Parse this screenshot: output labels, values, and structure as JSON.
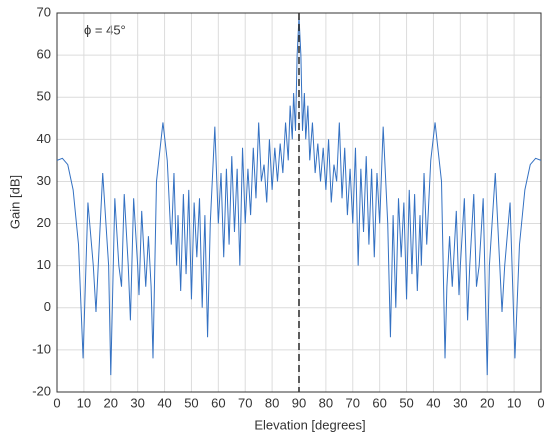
{
  "chart_data": {
    "type": "line",
    "xlabel": "Elevation [degrees]",
    "ylabel": "Gain [dB]",
    "annotation": "ϕ = 45°",
    "xlim": [
      0,
      180
    ],
    "ylim": [
      -20,
      70
    ],
    "xticks": [
      0,
      10,
      20,
      30,
      40,
      50,
      60,
      70,
      80,
      90,
      {
        "value": 100,
        "label": "80"
      },
      {
        "value": 110,
        "label": "70"
      },
      {
        "value": 120,
        "label": "60"
      },
      {
        "value": 130,
        "label": "50"
      },
      {
        "value": 140,
        "label": "40"
      },
      {
        "value": 150,
        "label": "30"
      },
      {
        "value": 160,
        "label": "20"
      },
      {
        "value": 170,
        "label": "10"
      },
      {
        "value": 180,
        "label": "0"
      }
    ],
    "yticks": [
      -20,
      -10,
      0,
      10,
      20,
      30,
      40,
      50,
      60,
      70
    ],
    "grid": true,
    "vline": 90,
    "x": [
      0,
      2,
      4,
      6,
      8,
      9.7,
      11.5,
      13.5,
      14.5,
      17,
      19.2,
      20,
      21.5,
      23,
      24,
      25,
      26.5,
      27.3,
      28.5,
      30,
      30.5,
      31.5,
      33,
      34,
      35,
      35.7,
      37,
      39.4,
      41,
      42.5,
      43.5,
      44.5,
      45,
      46,
      47,
      48,
      49,
      50,
      51,
      52,
      53,
      54,
      55,
      56,
      57,
      58.7,
      60,
      61,
      62,
      63,
      64,
      65,
      66,
      67,
      68,
      69,
      70,
      71,
      72,
      73,
      74,
      75,
      76,
      77,
      78,
      79,
      80,
      81,
      82,
      83,
      84,
      85,
      86,
      86.7,
      87.5,
      88,
      88.7,
      89.3,
      90,
      90.7,
      91.3,
      92,
      92.5,
      93.3,
      94,
      95,
      96,
      97,
      98,
      99,
      100,
      101,
      102,
      103,
      104,
      105,
      106,
      107,
      108,
      109,
      110,
      111,
      112,
      113,
      114,
      115,
      116,
      117,
      118,
      119,
      120,
      121.3,
      123,
      124,
      125,
      126,
      127,
      128,
      129,
      130,
      131,
      132,
      133,
      134,
      135,
      135.5,
      136.5,
      137.5,
      139,
      140.6,
      143,
      144.3,
      145,
      146,
      147,
      148.5,
      149.5,
      150,
      151.5,
      152.7,
      153.5,
      155,
      156,
      157,
      158.5,
      160,
      160.8,
      163,
      165.5,
      166.5,
      168.5,
      170.3,
      172,
      174,
      176,
      178,
      180
    ],
    "series": [
      {
        "color": "#3471c2",
        "values": [
          35,
          35.5,
          34,
          28,
          15,
          -12,
          25,
          10,
          -1,
          32,
          10,
          -16,
          26,
          10,
          5,
          27,
          10,
          -3,
          26,
          10,
          3,
          23,
          5,
          17,
          5,
          -12,
          30,
          44,
          35,
          15,
          32,
          10,
          22,
          4,
          27,
          8,
          28,
          2,
          25,
          12,
          26,
          0,
          22,
          -7,
          20,
          43,
          20,
          32,
          12,
          33,
          15,
          36,
          18,
          33,
          10,
          38,
          20,
          33,
          22,
          38,
          26,
          44,
          30,
          34,
          25,
          40,
          28,
          38,
          30,
          39,
          32,
          44,
          35,
          48,
          40,
          51,
          42,
          60,
          69,
          60,
          42,
          51,
          40,
          48,
          35,
          44,
          32,
          39,
          30,
          38,
          28,
          40,
          25,
          34,
          30,
          44,
          26,
          38,
          22,
          33,
          20,
          38,
          10,
          33,
          18,
          36,
          15,
          33,
          12,
          32,
          20,
          43,
          20,
          -7,
          22,
          0,
          26,
          12,
          25,
          2,
          28,
          8,
          27,
          4,
          22,
          10,
          32,
          15,
          35,
          44,
          30,
          -12,
          5,
          17,
          5,
          23,
          3,
          10,
          26,
          -3,
          10,
          27,
          5,
          10,
          26,
          -16,
          10,
          32,
          -1,
          10,
          25,
          -12,
          15,
          28,
          34,
          35.5,
          35
        ]
      }
    ]
  }
}
